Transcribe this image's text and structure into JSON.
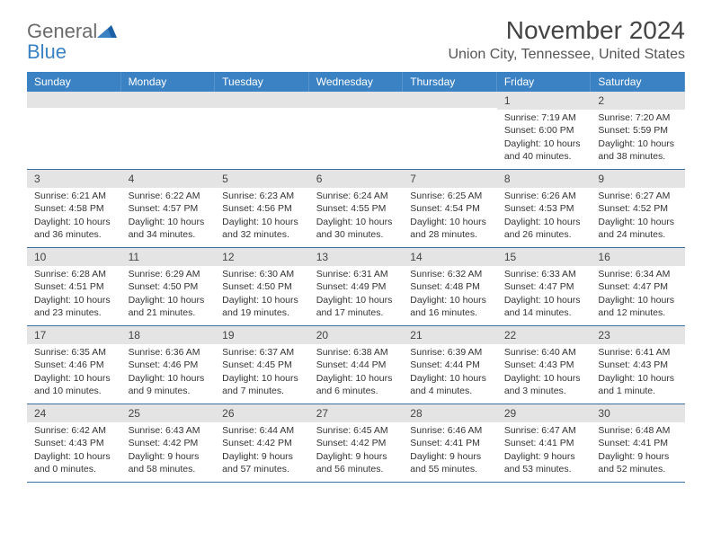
{
  "logo": {
    "word1": "General",
    "word2": "Blue"
  },
  "title": "November 2024",
  "location": "Union City, Tennessee, United States",
  "colors": {
    "header_bg": "#3b82c4",
    "header_text": "#ffffff",
    "daynum_bg": "#e4e4e4",
    "week_border": "#3b6fa0"
  },
  "dow": [
    "Sunday",
    "Monday",
    "Tuesday",
    "Wednesday",
    "Thursday",
    "Friday",
    "Saturday"
  ],
  "weeks": [
    [
      {
        "n": "",
        "sr": "",
        "ss": "",
        "dl": ""
      },
      {
        "n": "",
        "sr": "",
        "ss": "",
        "dl": ""
      },
      {
        "n": "",
        "sr": "",
        "ss": "",
        "dl": ""
      },
      {
        "n": "",
        "sr": "",
        "ss": "",
        "dl": ""
      },
      {
        "n": "",
        "sr": "",
        "ss": "",
        "dl": ""
      },
      {
        "n": "1",
        "sr": "Sunrise: 7:19 AM",
        "ss": "Sunset: 6:00 PM",
        "dl": "Daylight: 10 hours and 40 minutes."
      },
      {
        "n": "2",
        "sr": "Sunrise: 7:20 AM",
        "ss": "Sunset: 5:59 PM",
        "dl": "Daylight: 10 hours and 38 minutes."
      }
    ],
    [
      {
        "n": "3",
        "sr": "Sunrise: 6:21 AM",
        "ss": "Sunset: 4:58 PM",
        "dl": "Daylight: 10 hours and 36 minutes."
      },
      {
        "n": "4",
        "sr": "Sunrise: 6:22 AM",
        "ss": "Sunset: 4:57 PM",
        "dl": "Daylight: 10 hours and 34 minutes."
      },
      {
        "n": "5",
        "sr": "Sunrise: 6:23 AM",
        "ss": "Sunset: 4:56 PM",
        "dl": "Daylight: 10 hours and 32 minutes."
      },
      {
        "n": "6",
        "sr": "Sunrise: 6:24 AM",
        "ss": "Sunset: 4:55 PM",
        "dl": "Daylight: 10 hours and 30 minutes."
      },
      {
        "n": "7",
        "sr": "Sunrise: 6:25 AM",
        "ss": "Sunset: 4:54 PM",
        "dl": "Daylight: 10 hours and 28 minutes."
      },
      {
        "n": "8",
        "sr": "Sunrise: 6:26 AM",
        "ss": "Sunset: 4:53 PM",
        "dl": "Daylight: 10 hours and 26 minutes."
      },
      {
        "n": "9",
        "sr": "Sunrise: 6:27 AM",
        "ss": "Sunset: 4:52 PM",
        "dl": "Daylight: 10 hours and 24 minutes."
      }
    ],
    [
      {
        "n": "10",
        "sr": "Sunrise: 6:28 AM",
        "ss": "Sunset: 4:51 PM",
        "dl": "Daylight: 10 hours and 23 minutes."
      },
      {
        "n": "11",
        "sr": "Sunrise: 6:29 AM",
        "ss": "Sunset: 4:50 PM",
        "dl": "Daylight: 10 hours and 21 minutes."
      },
      {
        "n": "12",
        "sr": "Sunrise: 6:30 AM",
        "ss": "Sunset: 4:50 PM",
        "dl": "Daylight: 10 hours and 19 minutes."
      },
      {
        "n": "13",
        "sr": "Sunrise: 6:31 AM",
        "ss": "Sunset: 4:49 PM",
        "dl": "Daylight: 10 hours and 17 minutes."
      },
      {
        "n": "14",
        "sr": "Sunrise: 6:32 AM",
        "ss": "Sunset: 4:48 PM",
        "dl": "Daylight: 10 hours and 16 minutes."
      },
      {
        "n": "15",
        "sr": "Sunrise: 6:33 AM",
        "ss": "Sunset: 4:47 PM",
        "dl": "Daylight: 10 hours and 14 minutes."
      },
      {
        "n": "16",
        "sr": "Sunrise: 6:34 AM",
        "ss": "Sunset: 4:47 PM",
        "dl": "Daylight: 10 hours and 12 minutes."
      }
    ],
    [
      {
        "n": "17",
        "sr": "Sunrise: 6:35 AM",
        "ss": "Sunset: 4:46 PM",
        "dl": "Daylight: 10 hours and 10 minutes."
      },
      {
        "n": "18",
        "sr": "Sunrise: 6:36 AM",
        "ss": "Sunset: 4:46 PM",
        "dl": "Daylight: 10 hours and 9 minutes."
      },
      {
        "n": "19",
        "sr": "Sunrise: 6:37 AM",
        "ss": "Sunset: 4:45 PM",
        "dl": "Daylight: 10 hours and 7 minutes."
      },
      {
        "n": "20",
        "sr": "Sunrise: 6:38 AM",
        "ss": "Sunset: 4:44 PM",
        "dl": "Daylight: 10 hours and 6 minutes."
      },
      {
        "n": "21",
        "sr": "Sunrise: 6:39 AM",
        "ss": "Sunset: 4:44 PM",
        "dl": "Daylight: 10 hours and 4 minutes."
      },
      {
        "n": "22",
        "sr": "Sunrise: 6:40 AM",
        "ss": "Sunset: 4:43 PM",
        "dl": "Daylight: 10 hours and 3 minutes."
      },
      {
        "n": "23",
        "sr": "Sunrise: 6:41 AM",
        "ss": "Sunset: 4:43 PM",
        "dl": "Daylight: 10 hours and 1 minute."
      }
    ],
    [
      {
        "n": "24",
        "sr": "Sunrise: 6:42 AM",
        "ss": "Sunset: 4:43 PM",
        "dl": "Daylight: 10 hours and 0 minutes."
      },
      {
        "n": "25",
        "sr": "Sunrise: 6:43 AM",
        "ss": "Sunset: 4:42 PM",
        "dl": "Daylight: 9 hours and 58 minutes."
      },
      {
        "n": "26",
        "sr": "Sunrise: 6:44 AM",
        "ss": "Sunset: 4:42 PM",
        "dl": "Daylight: 9 hours and 57 minutes."
      },
      {
        "n": "27",
        "sr": "Sunrise: 6:45 AM",
        "ss": "Sunset: 4:42 PM",
        "dl": "Daylight: 9 hours and 56 minutes."
      },
      {
        "n": "28",
        "sr": "Sunrise: 6:46 AM",
        "ss": "Sunset: 4:41 PM",
        "dl": "Daylight: 9 hours and 55 minutes."
      },
      {
        "n": "29",
        "sr": "Sunrise: 6:47 AM",
        "ss": "Sunset: 4:41 PM",
        "dl": "Daylight: 9 hours and 53 minutes."
      },
      {
        "n": "30",
        "sr": "Sunrise: 6:48 AM",
        "ss": "Sunset: 4:41 PM",
        "dl": "Daylight: 9 hours and 52 minutes."
      }
    ]
  ]
}
